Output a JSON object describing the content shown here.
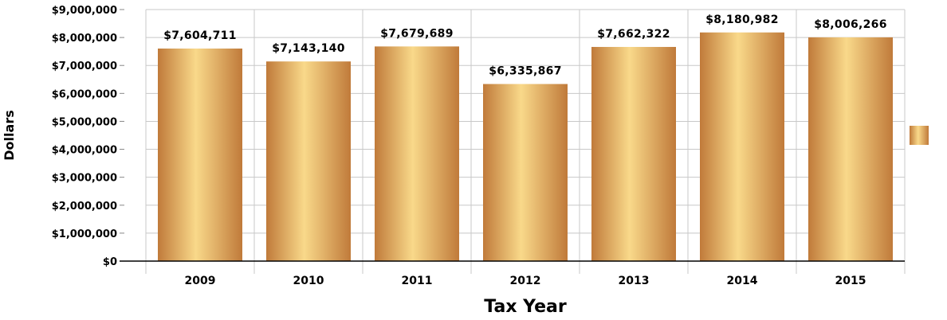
{
  "chart_data": {
    "type": "bar",
    "title": "",
    "xlabel": "Tax Year",
    "ylabel": "Dollars",
    "categories": [
      "2009",
      "2010",
      "2011",
      "2012",
      "2013",
      "2014",
      "2015"
    ],
    "series": [
      {
        "values": [
          7604711,
          7143140,
          7679689,
          6335867,
          7662322,
          8180982,
          8006266
        ],
        "value_labels": [
          "$7,604,711",
          "$7,143,140",
          "$7,679,689",
          "$6,335,867",
          "$7,662,322",
          "$8,180,982",
          "$8,006,266"
        ]
      }
    ],
    "ylim": [
      0,
      9000000
    ],
    "y_ticks": [
      0,
      1000000,
      2000000,
      3000000,
      4000000,
      5000000,
      6000000,
      7000000,
      8000000,
      9000000
    ],
    "y_tick_labels": [
      "$0",
      "$1,000,000",
      "$2,000,000",
      "$3,000,000",
      "$4,000,000",
      "$5,000,000",
      "$6,000,000",
      "$7,000,000",
      "$8,000,000",
      "$9,000,000"
    ],
    "grid": "both",
    "legend": "right",
    "colors": {
      "bar_edge": "#c07a3a",
      "bar_center": "#f9d98a",
      "grid": "#c8c8c8",
      "axis": "#000000"
    }
  }
}
